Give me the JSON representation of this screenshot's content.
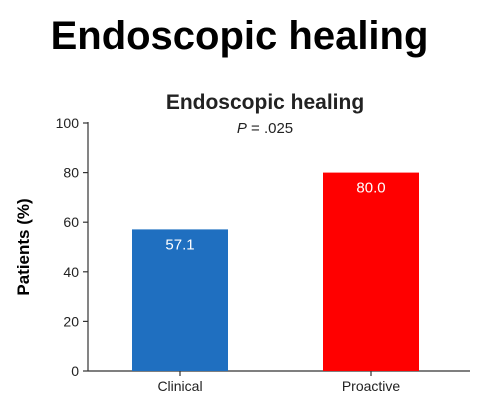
{
  "page": {
    "title": "Endoscopic healing"
  },
  "chart_data": {
    "type": "bar",
    "title": "Endoscopic healing",
    "annotation": {
      "italic": "P",
      "text": " = .025"
    },
    "xlabel": "",
    "ylabel": "Patients (%)",
    "ylim": [
      0,
      100
    ],
    "yticks": [
      0,
      20,
      40,
      60,
      80,
      100
    ],
    "categories": [
      "Clinical",
      "Proactive"
    ],
    "values": [
      57.1,
      80.0
    ],
    "value_labels": [
      "57.1",
      "80.0"
    ],
    "colors": [
      "#1f6fc0",
      "#ff0000"
    ],
    "grid": false,
    "legend": "none"
  }
}
